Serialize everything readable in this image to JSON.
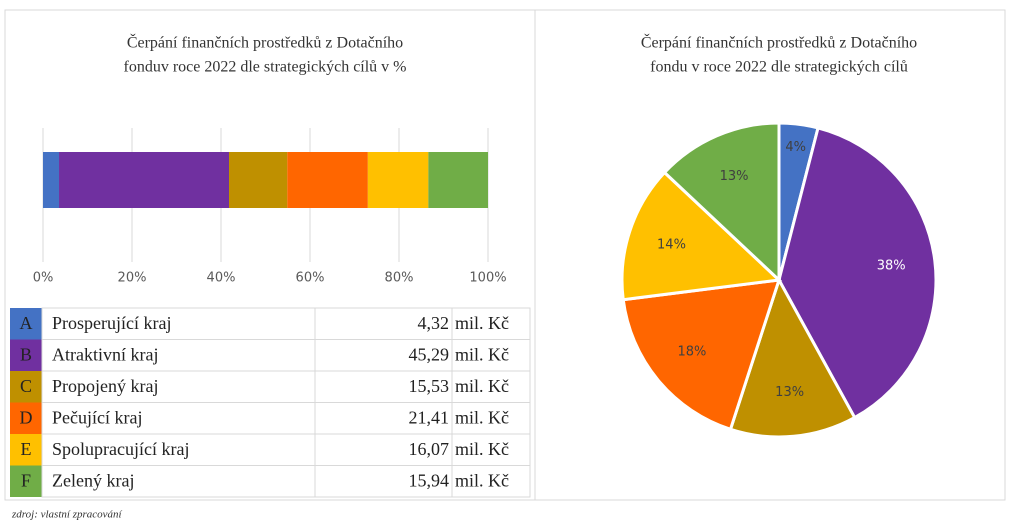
{
  "chart_data": [
    {
      "type": "bar",
      "orientation": "horizontal",
      "stacked": true,
      "title": [
        "Čerpání finančních prostředků z Dotačního",
        "fonduv roce 2022 dle strategických cílů v %"
      ],
      "series": [
        {
          "name": "A",
          "color": "#4472c4",
          "values": [
            3.6
          ]
        },
        {
          "name": "B",
          "color": "#7030a0",
          "values": [
            38.2
          ]
        },
        {
          "name": "C",
          "color": "#bf9000",
          "values": [
            13.1
          ]
        },
        {
          "name": "D",
          "color": "#ff6600",
          "values": [
            18.1
          ]
        },
        {
          "name": "E",
          "color": "#ffc000",
          "values": [
            13.6
          ]
        },
        {
          "name": "F",
          "color": "#70ad47",
          "values": [
            13.4
          ]
        }
      ],
      "xlim": [
        0,
        100
      ],
      "xticks": [
        {
          "value": 0,
          "label": "0%"
        },
        {
          "value": 20,
          "label": "20%"
        },
        {
          "value": 40,
          "label": "40%"
        },
        {
          "value": 60,
          "label": "60%"
        },
        {
          "value": 80,
          "label": "80%"
        },
        {
          "value": 100,
          "label": "100%"
        }
      ],
      "grid": true
    },
    {
      "type": "pie",
      "title": [
        "Čerpání finančních prostředků z Dotačního",
        "fondu v roce 2022 dle strategických cílů"
      ],
      "values": [
        4,
        38,
        13,
        18,
        14,
        13
      ],
      "value_labels": [
        "4%",
        "38%",
        "13%",
        "18%",
        "14%",
        "13%"
      ],
      "colors": [
        "#4472c4",
        "#7030a0",
        "#bf9000",
        "#ff6600",
        "#ffc000",
        "#70ad47"
      ]
    }
  ],
  "table": {
    "rows": [
      [
        "Prosperující kraj",
        "4,32",
        "mil. Kč"
      ],
      [
        "Atraktivní kraj",
        "45,29",
        "mil. Kč"
      ],
      [
        "Propojený kraj",
        "15,53",
        "mil. Kč"
      ],
      [
        "Pečující kraj",
        "21,41",
        "mil. Kč"
      ],
      [
        "Spolupracující kraj",
        "16,07",
        "mil. Kč"
      ],
      [
        "Zelený kraj",
        "15,94",
        "mil. Kč"
      ]
    ]
  },
  "source": "zdroj: vlastní zpracování"
}
